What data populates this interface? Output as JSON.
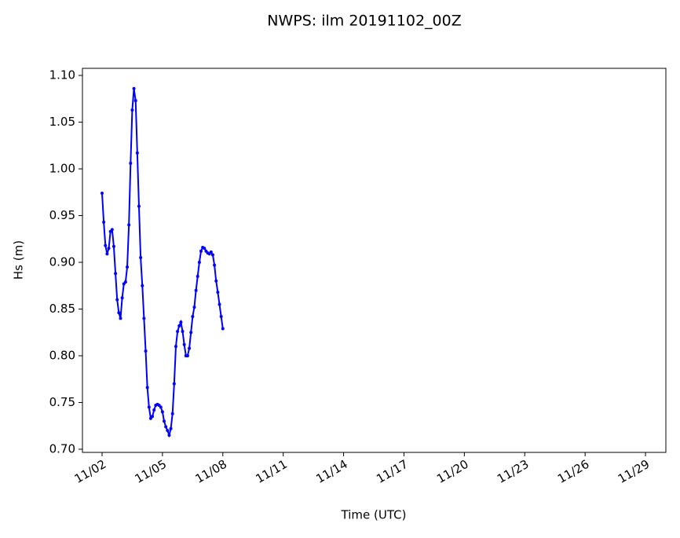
{
  "chart_data": {
    "type": "line",
    "title": "NWPS: ilm 20191102_00Z",
    "x_label": "Time (UTC)",
    "y_label": "Hs (m)",
    "x": [
      0,
      2,
      4,
      6,
      8,
      10,
      12,
      14,
      16,
      18,
      20,
      22,
      24,
      26,
      28,
      30,
      32,
      34,
      36,
      38,
      40,
      42,
      44,
      46,
      48,
      50,
      52,
      54,
      56,
      58,
      60,
      62,
      64,
      66,
      68,
      70,
      72,
      74,
      76,
      78,
      80,
      82,
      84,
      86,
      88,
      90,
      92,
      94,
      96,
      98,
      100,
      102,
      104,
      106,
      108,
      110,
      112,
      114,
      116,
      118,
      120,
      122,
      124,
      126,
      128,
      130,
      132,
      134,
      136,
      138,
      140,
      142,
      144
    ],
    "series": [
      {
        "color": "#0000ff",
        "values": [
          0.974,
          0.943,
          0.918,
          0.909,
          0.915,
          0.933,
          0.935,
          0.917,
          0.888,
          0.86,
          0.846,
          0.84,
          0.862,
          0.877,
          0.879,
          0.895,
          0.94,
          1.006,
          1.063,
          1.086,
          1.073,
          1.017,
          0.96,
          0.905,
          0.875,
          0.84,
          0.805,
          0.766,
          0.745,
          0.733,
          0.735,
          0.742,
          0.747,
          0.748,
          0.747,
          0.745,
          0.74,
          0.73,
          0.724,
          0.72,
          0.715,
          0.722,
          0.738,
          0.77,
          0.81,
          0.826,
          0.832,
          0.836,
          0.826,
          0.812,
          0.8,
          0.8,
          0.808,
          0.825,
          0.842,
          0.852,
          0.87,
          0.885,
          0.9,
          0.912,
          0.916,
          0.915,
          0.912,
          0.91,
          0.909,
          0.911,
          0.908,
          0.897,
          0.88,
          0.868,
          0.855,
          0.842,
          0.829
        ]
      }
    ],
    "xlim": [
      -23.4,
      672.3
    ],
    "xticks": [
      {
        "value": 0,
        "label": "11/02"
      },
      {
        "value": 72,
        "label": "11/05"
      },
      {
        "value": 144,
        "label": "11/08"
      },
      {
        "value": 216,
        "label": "11/11"
      },
      {
        "value": 288,
        "label": "11/14"
      },
      {
        "value": 360,
        "label": "11/17"
      },
      {
        "value": 432,
        "label": "11/20"
      },
      {
        "value": 504,
        "label": "11/23"
      },
      {
        "value": 576,
        "label": "11/26"
      },
      {
        "value": 648,
        "label": "11/29"
      }
    ],
    "ylim": [
      0.6966,
      1.1076
    ],
    "yticks": [
      {
        "value": 0.7,
        "label": "0.70"
      },
      0.75,
      {
        "value": 0.8,
        "label": "0.80"
      },
      0.85,
      {
        "value": 0.9,
        "label": "0.90"
      },
      0.95,
      {
        "value": 1.0,
        "label": "1.00"
      },
      1.05,
      {
        "value": 1.1,
        "label": "1.10"
      }
    ],
    "grid": false
  }
}
